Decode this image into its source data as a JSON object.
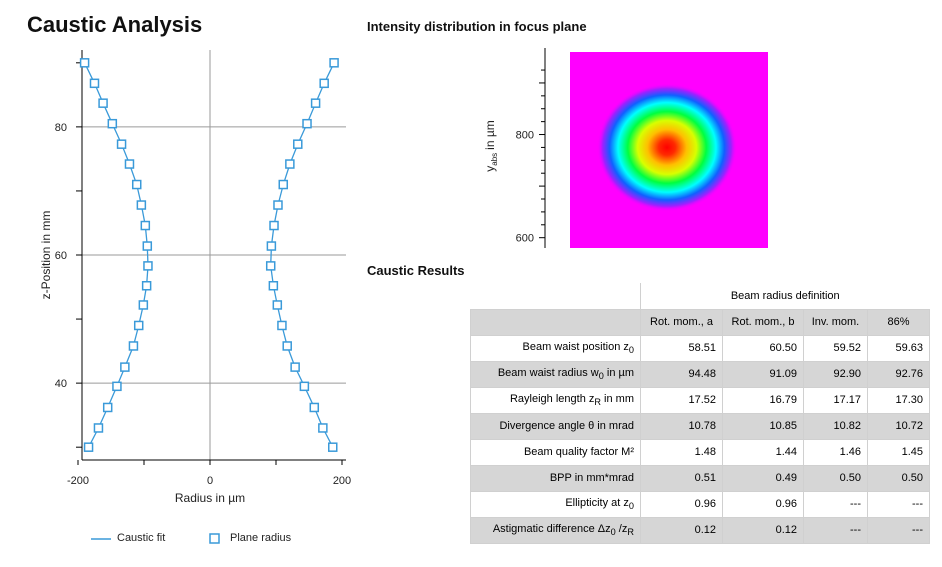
{
  "header": {
    "title": "Caustic Analysis",
    "focus_title": "Intensity distribution in focus plane",
    "results_title": "Caustic Results"
  },
  "chart_data": [
    {
      "type": "scatter",
      "title": "",
      "xlabel": "Radius in µm",
      "ylabel": "z-Position in mm",
      "xlim": [
        -200,
        200
      ],
      "ylim": [
        28,
        92
      ],
      "xticks": [
        -200,
        0,
        200
      ],
      "yticks": [
        40,
        60,
        80
      ],
      "grid": true,
      "legend_position": "bottom",
      "legend": {
        "fit_label": "Caustic fit",
        "plane_label": "Plane radius"
      },
      "colors": {
        "series": "#3a9ad9"
      },
      "series": [
        {
          "name": "Plane radius",
          "z": [
            30,
            33,
            36.2,
            39.5,
            42.5,
            45.8,
            49,
            52.2,
            55.2,
            58.3,
            61.4,
            64.6,
            67.8,
            71,
            74.2,
            77.3,
            80.5,
            83.7,
            86.8,
            90
          ],
          "right": [
            186,
            171,
            158,
            143,
            129,
            117,
            109,
            102,
            96,
            92,
            93,
            97,
            103,
            111,
            121,
            133,
            147,
            160,
            173,
            188
          ],
          "left": [
            -184,
            -169,
            -155,
            -141,
            -129,
            -116,
            -108,
            -101,
            -96,
            -94,
            -95,
            -98,
            -104,
            -111,
            -122,
            -134,
            -148,
            -162,
            -175,
            -190
          ]
        }
      ]
    },
    {
      "type": "heatmap",
      "ylabel": "y_abs in µm",
      "ylabel_main": "y",
      "ylabel_sub": "abs",
      "ylabel_unit": "in µm",
      "ylim": [
        580,
        960
      ],
      "yticks": [
        600,
        800
      ],
      "peak_y": 775,
      "colors": {
        "background": "#ff00ff",
        "peak": "#ff0000"
      }
    }
  ],
  "results": {
    "group_header": "Beam radius definition",
    "columns": [
      "Rot. mom., a",
      "Rot. mom., b",
      "Inv. mom.",
      "86%"
    ],
    "rows": [
      {
        "label": "Beam waist position z",
        "sub": "0",
        "suffix": "",
        "values": [
          "58.51",
          "60.50",
          "59.52",
          "59.63"
        ]
      },
      {
        "label": "Beam waist radius w",
        "sub": "0",
        "suffix": " in µm",
        "values": [
          "94.48",
          "91.09",
          "92.90",
          "92.76"
        ]
      },
      {
        "label": "Rayleigh length z",
        "sub": "R",
        "suffix": " in mm",
        "values": [
          "17.52",
          "16.79",
          "17.17",
          "17.30"
        ]
      },
      {
        "label": "Divergence angle θ in mrad",
        "sub": "",
        "suffix": "",
        "values": [
          "10.78",
          "10.85",
          "10.82",
          "10.72"
        ]
      },
      {
        "label": "Beam quality factor M²",
        "sub": "",
        "suffix": "",
        "values": [
          "1.48",
          "1.44",
          "1.46",
          "1.45"
        ]
      },
      {
        "label": "BPP in mm*mrad",
        "sub": "",
        "suffix": "",
        "values": [
          "0.51",
          "0.49",
          "0.50",
          "0.50"
        ]
      },
      {
        "label": "Ellipticity at z",
        "sub": "0",
        "suffix": "",
        "values": [
          "0.96",
          "0.96",
          "---",
          "---"
        ]
      },
      {
        "label": "Astigmatic difference Δz",
        "sub": "0",
        "suffix": " /z",
        "sub2": "R",
        "values": [
          "0.12",
          "0.12",
          "---",
          "---"
        ]
      }
    ]
  }
}
